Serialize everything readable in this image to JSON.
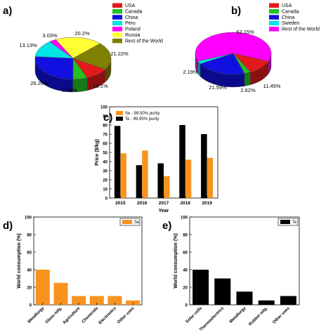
{
  "colors": {
    "red": "#e31a1c",
    "green": "#22c322",
    "blue": "#1010e0",
    "cyan": "#00e5e5",
    "magenta": "#ff00ff",
    "yellow": "#ffff33",
    "olive": "#808000",
    "orange": "#f7931e",
    "black": "#000000"
  },
  "chart_data": [
    {
      "id": "a",
      "panel_label": "a)",
      "type": "pie",
      "title": "",
      "legend_position": "top-right",
      "slices": [
        {
          "name": "USA",
          "value": 10.1,
          "label": "10.1%",
          "color": "#e31a1c"
        },
        {
          "name": "Canada",
          "value": 6.06,
          "label": "6.06%",
          "color": "#22c322"
        },
        {
          "name": "China",
          "value": 26.26,
          "label": "26.26%",
          "color": "#1010e0"
        },
        {
          "name": "Peru",
          "value": 13.13,
          "label": "13.13%",
          "color": "#00e5e5"
        },
        {
          "name": "Poland",
          "value": 3.03,
          "label": "3.03%",
          "color": "#ff00ff"
        },
        {
          "name": "Russia",
          "value": 20.2,
          "label": "20.2%",
          "color": "#ffff33"
        },
        {
          "name": "Rest of the World",
          "value": 21.22,
          "label": "21.22%",
          "color": "#808000"
        }
      ]
    },
    {
      "id": "b",
      "panel_label": "b)",
      "type": "pie",
      "title": "",
      "legend_position": "top-right",
      "slices": [
        {
          "name": "USA",
          "value": 11.45,
          "label": "11.45%",
          "color": "#e31a1c"
        },
        {
          "name": "Canada",
          "value": 2.62,
          "label": "2.62%",
          "color": "#22c322"
        },
        {
          "name": "China",
          "value": 21.59,
          "label": "21.59%",
          "color": "#1010e0"
        },
        {
          "name": "Sweden",
          "value": 2.19,
          "label": "2.19%",
          "color": "#00e5e5"
        },
        {
          "name": "Rest of the World",
          "value": 62.15,
          "label": "62.15%",
          "color": "#ff00ff"
        }
      ]
    },
    {
      "id": "c",
      "panel_label": "c)",
      "type": "bar",
      "title": "",
      "xlabel": "Year",
      "ylabel": "Price ($/kg)",
      "categories": [
        "2015",
        "2016",
        "2017",
        "2018",
        "2019"
      ],
      "series": [
        {
          "name": "Te - 99.95% purity",
          "color": "#000000",
          "values": [
            79,
            36,
            38,
            80,
            70
          ]
        },
        {
          "name": "Se - 99.50% purity",
          "color": "#f7931e",
          "values": [
            49,
            52,
            24,
            42,
            44
          ]
        }
      ],
      "legend_order": [
        "Se - 99.50% purity",
        "Te - 99.95% purity"
      ],
      "ylim": [
        0,
        100
      ],
      "yticks": [
        0,
        10,
        20,
        30,
        40,
        50,
        60,
        70,
        80,
        90,
        100
      ],
      "grid": false,
      "legend_position": "top-left"
    },
    {
      "id": "d",
      "panel_label": "d)",
      "type": "bar",
      "title": "",
      "xlabel": "",
      "ylabel": "World consumption (%)",
      "categories": [
        "Metallurgy",
        "Glass mfg.",
        "Agriculture",
        "Chemicals",
        "Electronics",
        "Other uses"
      ],
      "series": [
        {
          "name": "Se",
          "color": "#f7931e",
          "values": [
            40,
            25,
            10,
            10,
            10,
            5
          ]
        }
      ],
      "ylim": [
        0,
        100
      ],
      "yticks": [
        0,
        20,
        40,
        60,
        80,
        100
      ],
      "grid": false,
      "legend_position": "top-right"
    },
    {
      "id": "e",
      "panel_label": "e)",
      "type": "bar",
      "title": "",
      "xlabel": "",
      "ylabel": "World consumption (%)",
      "categories": [
        "Solar cells",
        "Thermoelectrics",
        "Metallurgy",
        "Rubber mfg.",
        "Other uses"
      ],
      "series": [
        {
          "name": "Te",
          "color": "#000000",
          "values": [
            40,
            30,
            15,
            5,
            10
          ]
        }
      ],
      "ylim": [
        0,
        100
      ],
      "yticks": [
        0,
        20,
        40,
        60,
        80,
        100
      ],
      "grid": false,
      "legend_position": "top-right"
    }
  ]
}
